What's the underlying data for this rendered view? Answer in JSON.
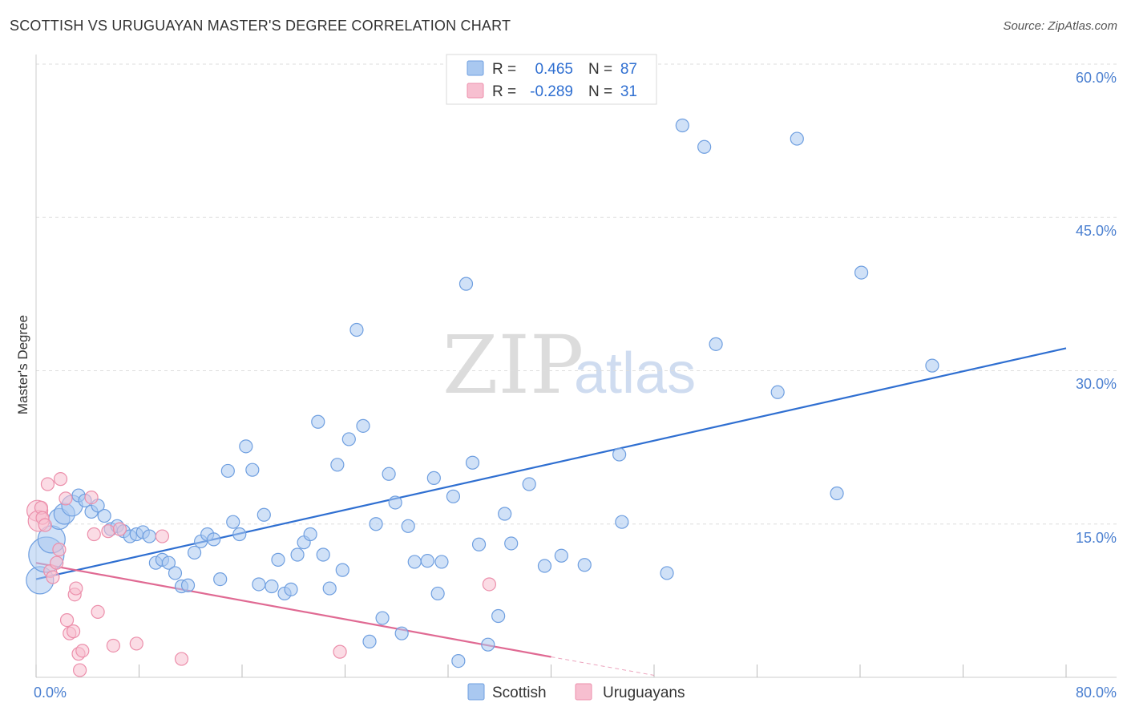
{
  "title": "SCOTTISH VS URUGUAYAN MASTER'S DEGREE CORRELATION CHART",
  "source": "Source: ZipAtlas.com",
  "watermark": {
    "zip": "ZIP",
    "atlas": "atlas"
  },
  "legend": {
    "series1": {
      "r_label": "R =",
      "r_value": "0.465",
      "n_label": "N =",
      "n_value": "87"
    },
    "series2": {
      "r_label": "R =",
      "r_value": "-0.289",
      "n_label": "N =",
      "n_value": "31"
    }
  },
  "colors": {
    "scottish_fill": "#a9c8f0",
    "scottish_stroke": "#6f9fe0",
    "scottish_line": "#2f6fd1",
    "uruguayan_fill": "#f7bfd0",
    "uruguayan_stroke": "#ec8fab",
    "uruguayan_line": "#e06a93",
    "grid": "#dddddd",
    "tick_text": "#4a7fd0"
  },
  "chart_data": {
    "type": "scatter",
    "title": "SCOTTISH VS URUGUAYAN MASTER'S DEGREE CORRELATION CHART",
    "xlabel": "",
    "ylabel": "Master's Degree",
    "xlim": [
      0,
      80
    ],
    "ylim": [
      0,
      60
    ],
    "x_tick_labels": [
      "0.0%",
      "80.0%"
    ],
    "y_ticks": [
      15,
      30,
      45,
      60
    ],
    "y_tick_labels": [
      "15.0%",
      "30.0%",
      "45.0%",
      "60.0%"
    ],
    "x_minor_ticks": [
      0,
      8,
      16,
      24,
      32,
      40,
      48,
      56,
      64,
      72,
      80
    ],
    "grid": true,
    "legend_position": "top-center",
    "series": [
      {
        "name": "Scottish",
        "r": 0.465,
        "n": 87,
        "trend": {
          "x": [
            0,
            80
          ],
          "y": [
            9.6,
            32.2
          ]
        },
        "points": [
          {
            "x": 0.3,
            "y": 9.5,
            "s": 3
          },
          {
            "x": 0.8,
            "y": 12.0,
            "s": 4
          },
          {
            "x": 1.2,
            "y": 13.5,
            "s": 3
          },
          {
            "x": 1.8,
            "y": 15.5,
            "s": 2
          },
          {
            "x": 2.2,
            "y": 16.0,
            "s": 2
          },
          {
            "x": 2.8,
            "y": 16.8,
            "s": 2
          },
          {
            "x": 3.3,
            "y": 17.8,
            "s": 1
          },
          {
            "x": 3.8,
            "y": 17.3,
            "s": 1
          },
          {
            "x": 4.3,
            "y": 16.2,
            "s": 1
          },
          {
            "x": 4.8,
            "y": 16.8,
            "s": 1
          },
          {
            "x": 5.3,
            "y": 15.8,
            "s": 1
          },
          {
            "x": 5.8,
            "y": 14.5,
            "s": 1
          },
          {
            "x": 6.3,
            "y": 14.8,
            "s": 1
          },
          {
            "x": 6.8,
            "y": 14.3,
            "s": 1
          },
          {
            "x": 7.3,
            "y": 13.8,
            "s": 1
          },
          {
            "x": 7.8,
            "y": 14.0,
            "s": 1
          },
          {
            "x": 8.3,
            "y": 14.2,
            "s": 1
          },
          {
            "x": 8.8,
            "y": 13.8,
            "s": 1
          },
          {
            "x": 9.3,
            "y": 11.2,
            "s": 1
          },
          {
            "x": 9.8,
            "y": 11.5,
            "s": 1
          },
          {
            "x": 10.3,
            "y": 11.2,
            "s": 1
          },
          {
            "x": 10.8,
            "y": 10.2,
            "s": 1
          },
          {
            "x": 11.3,
            "y": 8.9,
            "s": 1
          },
          {
            "x": 11.8,
            "y": 9.0,
            "s": 1
          },
          {
            "x": 12.3,
            "y": 12.2,
            "s": 1
          },
          {
            "x": 12.8,
            "y": 13.3,
            "s": 1
          },
          {
            "x": 13.3,
            "y": 14.0,
            "s": 1
          },
          {
            "x": 13.8,
            "y": 13.5,
            "s": 1
          },
          {
            "x": 14.3,
            "y": 9.6,
            "s": 1
          },
          {
            "x": 14.9,
            "y": 20.2,
            "s": 1
          },
          {
            "x": 15.3,
            "y": 15.2,
            "s": 1
          },
          {
            "x": 15.8,
            "y": 14.0,
            "s": 1
          },
          {
            "x": 16.3,
            "y": 22.6,
            "s": 1
          },
          {
            "x": 16.8,
            "y": 20.3,
            "s": 1
          },
          {
            "x": 17.3,
            "y": 9.1,
            "s": 1
          },
          {
            "x": 17.7,
            "y": 15.9,
            "s": 1
          },
          {
            "x": 18.3,
            "y": 8.9,
            "s": 1
          },
          {
            "x": 18.8,
            "y": 11.5,
            "s": 1
          },
          {
            "x": 19.3,
            "y": 8.2,
            "s": 1
          },
          {
            "x": 19.8,
            "y": 8.6,
            "s": 1
          },
          {
            "x": 20.3,
            "y": 12.0,
            "s": 1
          },
          {
            "x": 20.8,
            "y": 13.2,
            "s": 1
          },
          {
            "x": 21.3,
            "y": 14.0,
            "s": 1
          },
          {
            "x": 21.9,
            "y": 25.0,
            "s": 1
          },
          {
            "x": 22.3,
            "y": 12.0,
            "s": 1
          },
          {
            "x": 22.8,
            "y": 8.7,
            "s": 1
          },
          {
            "x": 23.4,
            "y": 20.8,
            "s": 1
          },
          {
            "x": 23.8,
            "y": 10.5,
            "s": 1
          },
          {
            "x": 24.3,
            "y": 23.3,
            "s": 1
          },
          {
            "x": 24.9,
            "y": 34.0,
            "s": 1
          },
          {
            "x": 25.4,
            "y": 24.6,
            "s": 1
          },
          {
            "x": 25.9,
            "y": 3.5,
            "s": 1
          },
          {
            "x": 26.4,
            "y": 15.0,
            "s": 1
          },
          {
            "x": 26.9,
            "y": 5.8,
            "s": 1
          },
          {
            "x": 27.4,
            "y": 19.9,
            "s": 1
          },
          {
            "x": 27.9,
            "y": 17.1,
            "s": 1
          },
          {
            "x": 28.4,
            "y": 4.3,
            "s": 1
          },
          {
            "x": 28.9,
            "y": 14.8,
            "s": 1
          },
          {
            "x": 29.4,
            "y": 11.3,
            "s": 1
          },
          {
            "x": 30.4,
            "y": 11.4,
            "s": 1
          },
          {
            "x": 30.9,
            "y": 19.5,
            "s": 1
          },
          {
            "x": 31.5,
            "y": 11.3,
            "s": 1
          },
          {
            "x": 31.2,
            "y": 8.2,
            "s": 1
          },
          {
            "x": 32.4,
            "y": 17.7,
            "s": 1
          },
          {
            "x": 32.8,
            "y": 1.6,
            "s": 1
          },
          {
            "x": 33.4,
            "y": 38.5,
            "s": 1
          },
          {
            "x": 33.9,
            "y": 21.0,
            "s": 1
          },
          {
            "x": 34.4,
            "y": 13.0,
            "s": 1
          },
          {
            "x": 35.1,
            "y": 3.2,
            "s": 1
          },
          {
            "x": 35.9,
            "y": 6.0,
            "s": 1
          },
          {
            "x": 36.4,
            "y": 16.0,
            "s": 1
          },
          {
            "x": 36.9,
            "y": 13.1,
            "s": 1
          },
          {
            "x": 38.3,
            "y": 18.9,
            "s": 1
          },
          {
            "x": 39.5,
            "y": 10.9,
            "s": 1
          },
          {
            "x": 40.8,
            "y": 11.9,
            "s": 1
          },
          {
            "x": 42.6,
            "y": 11.0,
            "s": 1
          },
          {
            "x": 45.3,
            "y": 21.8,
            "s": 1
          },
          {
            "x": 45.5,
            "y": 15.2,
            "s": 1
          },
          {
            "x": 49.0,
            "y": 10.2,
            "s": 1
          },
          {
            "x": 50.2,
            "y": 54.0,
            "s": 1
          },
          {
            "x": 51.9,
            "y": 51.9,
            "s": 1
          },
          {
            "x": 52.8,
            "y": 32.6,
            "s": 1
          },
          {
            "x": 57.6,
            "y": 27.9,
            "s": 1
          },
          {
            "x": 59.1,
            "y": 52.7,
            "s": 1
          },
          {
            "x": 62.2,
            "y": 18.0,
            "s": 1
          },
          {
            "x": 64.1,
            "y": 39.6,
            "s": 1
          },
          {
            "x": 69.6,
            "y": 30.5,
            "s": 1
          }
        ]
      },
      {
        "name": "Uruguayans",
        "r": -0.289,
        "n": 31,
        "trend": {
          "x": [
            0,
            40
          ],
          "y": [
            11.2,
            2.0
          ]
        },
        "trend_dashed": {
          "x": [
            40,
            48
          ],
          "y": [
            2.0,
            0.2
          ]
        },
        "points": [
          {
            "x": 0.1,
            "y": 16.3,
            "s": 2
          },
          {
            "x": 0.2,
            "y": 15.3,
            "s": 2
          },
          {
            "x": 0.4,
            "y": 16.6,
            "s": 1
          },
          {
            "x": 0.5,
            "y": 15.6,
            "s": 1
          },
          {
            "x": 0.7,
            "y": 14.9,
            "s": 1
          },
          {
            "x": 0.9,
            "y": 18.9,
            "s": 1
          },
          {
            "x": 1.1,
            "y": 10.4,
            "s": 1
          },
          {
            "x": 1.3,
            "y": 9.8,
            "s": 1
          },
          {
            "x": 1.6,
            "y": 11.2,
            "s": 1
          },
          {
            "x": 1.8,
            "y": 12.5,
            "s": 1
          },
          {
            "x": 1.9,
            "y": 19.4,
            "s": 1
          },
          {
            "x": 2.3,
            "y": 17.5,
            "s": 1
          },
          {
            "x": 2.4,
            "y": 5.6,
            "s": 1
          },
          {
            "x": 2.6,
            "y": 4.3,
            "s": 1
          },
          {
            "x": 2.9,
            "y": 4.5,
            "s": 1
          },
          {
            "x": 3.0,
            "y": 8.1,
            "s": 1
          },
          {
            "x": 3.1,
            "y": 8.7,
            "s": 1
          },
          {
            "x": 3.3,
            "y": 2.3,
            "s": 1
          },
          {
            "x": 3.4,
            "y": 0.7,
            "s": 1
          },
          {
            "x": 3.6,
            "y": 2.6,
            "s": 1
          },
          {
            "x": 4.3,
            "y": 17.6,
            "s": 1
          },
          {
            "x": 4.5,
            "y": 14.0,
            "s": 1
          },
          {
            "x": 4.8,
            "y": 6.4,
            "s": 1
          },
          {
            "x": 5.6,
            "y": 14.3,
            "s": 1
          },
          {
            "x": 6.0,
            "y": 3.1,
            "s": 1
          },
          {
            "x": 6.5,
            "y": 14.5,
            "s": 1
          },
          {
            "x": 7.8,
            "y": 3.3,
            "s": 1
          },
          {
            "x": 9.8,
            "y": 13.8,
            "s": 1
          },
          {
            "x": 11.3,
            "y": 1.8,
            "s": 1
          },
          {
            "x": 23.6,
            "y": 2.5,
            "s": 1
          },
          {
            "x": 35.2,
            "y": 9.1,
            "s": 1
          }
        ]
      }
    ],
    "legend_entries": [
      "Scottish",
      "Uruguayans"
    ]
  }
}
